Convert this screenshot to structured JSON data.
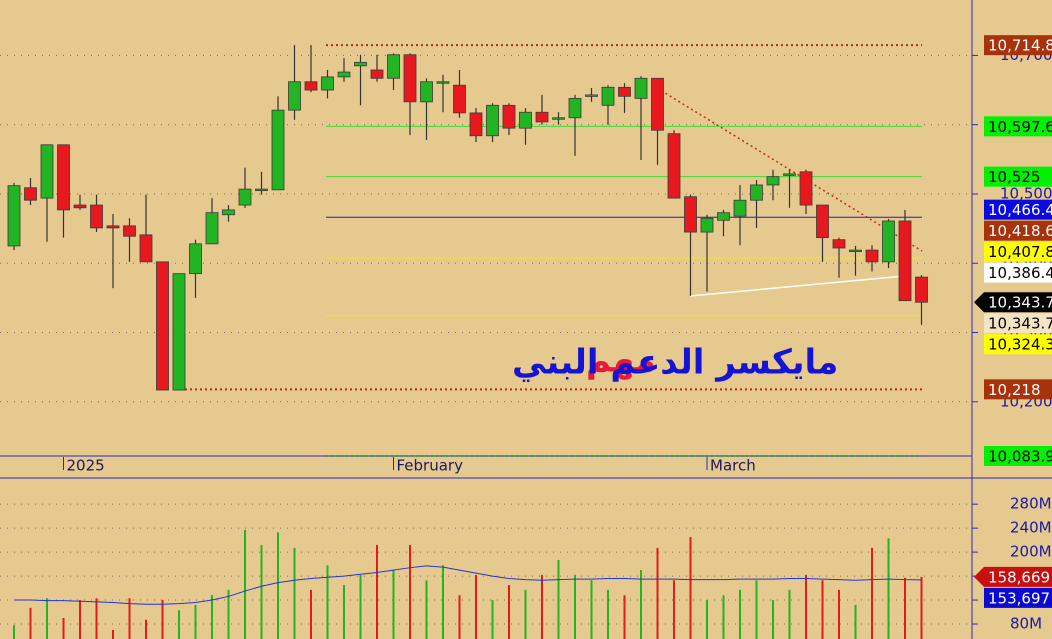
{
  "chart_data": [
    {
      "type": "candlestick",
      "categories": [
        null,
        null,
        null,
        "2025",
        null,
        null,
        null,
        null,
        null,
        null,
        null,
        null,
        null,
        null,
        null,
        null,
        null,
        null,
        null,
        null,
        null,
        null,
        null,
        "February",
        null,
        null,
        null,
        null,
        null,
        null,
        null,
        null,
        null,
        null,
        null,
        null,
        null,
        null,
        null,
        null,
        null,
        null,
        "March",
        null,
        null,
        null,
        null,
        null,
        null,
        null,
        null,
        null,
        null,
        null,
        null,
        null
      ],
      "open": [
        10425,
        10509,
        10494,
        10571,
        10484,
        10484,
        10454,
        10454,
        10441,
        10402,
        10217,
        10385,
        10428,
        10470,
        10484,
        10507,
        10506,
        10621,
        10662,
        10650,
        10669,
        10685,
        10679,
        10667,
        10701,
        10633,
        10662,
        10657,
        10617,
        10584,
        10628,
        10595,
        10618,
        10610,
        10610,
        10643,
        10628,
        10654,
        10638,
        10667,
        10587,
        10496,
        10445,
        10462,
        10468,
        10491,
        10513,
        10529,
        10532,
        10484,
        10434,
        10419,
        10419,
        10402,
        10461,
        10380
      ],
      "high": [
        10516,
        10523,
        10571,
        10571,
        10499,
        10499,
        10471,
        10465,
        10499,
        10402,
        10385,
        10434,
        10494,
        10484,
        10538,
        10532,
        10641,
        10715,
        10715,
        10679,
        10696,
        10701,
        10701,
        10703,
        10703,
        10667,
        10672,
        10679,
        10624,
        10631,
        10631,
        10624,
        10643,
        10618,
        10643,
        10653,
        10657,
        10660,
        10670,
        10667,
        10592,
        10499,
        10470,
        10477,
        10513,
        10520,
        10535,
        10535,
        10535,
        10484,
        10437,
        10425,
        10426,
        10464,
        10477,
        10383
      ],
      "low": [
        10419,
        10484,
        10431,
        10437,
        10477,
        10445,
        10364,
        10402,
        10402,
        10217,
        10217,
        10350,
        10428,
        10460,
        10480,
        10499,
        10506,
        10607,
        10647,
        10638,
        10662,
        10628,
        10662,
        10650,
        10585,
        10578,
        10618,
        10610,
        10575,
        10575,
        10585,
        10571,
        10600,
        10600,
        10555,
        10633,
        10600,
        10617,
        10549,
        10542,
        10494,
        10353,
        10359,
        10439,
        10426,
        10451,
        10491,
        10480,
        10471,
        10402,
        10379,
        10382,
        10388,
        10393,
        10346,
        10311
      ],
      "close": [
        10512,
        10491,
        10571,
        10477,
        10480,
        10451,
        10451,
        10439,
        10402,
        10217,
        10385,
        10428,
        10473,
        10477,
        10507,
        10507,
        10621,
        10662,
        10650,
        10669,
        10676,
        10690,
        10667,
        10701,
        10633,
        10662,
        10662,
        10617,
        10584,
        10628,
        10595,
        10618,
        10604,
        10610,
        10638,
        10643,
        10654,
        10641,
        10667,
        10592,
        10494,
        10445,
        10465,
        10473,
        10491,
        10513,
        10525,
        10529,
        10484,
        10437,
        10422,
        10419,
        10402,
        10461,
        10346,
        10343.7
      ],
      "up_color": "#22b422",
      "down_color": "#e8191e",
      "ylim": [
        10090,
        10780
      ],
      "yticks": [
        {
          "value": 10200,
          "label": "10,200"
        },
        {
          "value": 10300,
          "label": "10,300"
        },
        {
          "value": 10400,
          "label": "10,400"
        },
        {
          "value": 10500,
          "label": "10,500"
        },
        {
          "value": 10600,
          "label": "10,600"
        },
        {
          "value": 10700,
          "label": "10,700"
        }
      ],
      "grid": true,
      "levels": [
        {
          "value": 10714.8,
          "label": "10,714.8",
          "color": "#a8320c",
          "text_color": "#ffffff",
          "line": "dotted",
          "line_color": "#b03010"
        },
        {
          "value": 10597.6,
          "label": "10,597.6",
          "color": "#00f000",
          "text_color": "#000000",
          "line": "solid",
          "line_color": "#3cdc3c"
        },
        {
          "value": 10525,
          "label": "10,525",
          "color": "#00f000",
          "text_color": "#000000",
          "line": "solid",
          "line_color": "#3cdc3c"
        },
        {
          "value": 10466.4,
          "label": "10,466.4",
          "color": "#0a0ae0",
          "text_color": "#ffffff",
          "line": "solid",
          "line_color": "#2020c0"
        },
        {
          "value": 10418.6,
          "label": "10,418.6",
          "color": "#a8320c",
          "text_color": "#ffffff"
        },
        {
          "value": 10407.8,
          "label": "10,407.8",
          "color": "#ffff00",
          "text_color": "#000000",
          "line": "solid",
          "line_color": "#f0f000"
        },
        {
          "value": 10386.4,
          "label": "10,386.4",
          "color": "#ffffff",
          "text_color": "#000000"
        },
        {
          "value": 10343.7,
          "label": "10,343.7",
          "color": "#000000",
          "text_color": "#ffffff",
          "current": true
        },
        {
          "value": 10343.7,
          "label": "10,343.7",
          "color": "#f4e4c6",
          "text_color": "#000000"
        },
        {
          "value": 10324.3,
          "label": "10,324.3",
          "color": "#ffff00",
          "text_color": "#000000",
          "line": "solid",
          "line_color": "#f0f000"
        },
        {
          "value": 10218,
          "label": "10,218",
          "color": "#a8320c",
          "text_color": "#ffffff",
          "line": "dotted",
          "line_color": "#b03010"
        },
        {
          "value": 10083.9,
          "label": "10,083.9",
          "color": "#00f000",
          "text_color": "#000000",
          "line": "dotted",
          "line_color": "#2cb02c"
        }
      ],
      "annotations": [
        {
          "text": "مهم",
          "color": "#e8193c"
        },
        {
          "text": "مايكسر الدعم البني",
          "color": "#1414d2"
        }
      ]
    },
    {
      "type": "volume",
      "values": [
        78,
        107,
        123,
        90,
        120,
        123,
        70,
        123,
        87,
        120,
        103,
        112,
        128,
        137,
        237,
        212,
        233,
        207,
        137,
        178,
        145,
        162,
        212,
        170,
        212,
        153,
        178,
        128,
        162,
        120,
        145,
        137,
        162,
        187,
        162,
        153,
        137,
        128,
        170,
        207,
        153,
        225,
        120,
        128,
        137,
        153,
        120,
        137,
        162,
        153,
        137,
        112,
        207,
        223,
        157,
        158.669
      ],
      "average": [
        120,
        120,
        119,
        119,
        118,
        117,
        116,
        114,
        113,
        113,
        114,
        116,
        120,
        126,
        135,
        143,
        149,
        153,
        156,
        158,
        160,
        163,
        166,
        170,
        174,
        177,
        175,
        170,
        165,
        160,
        156,
        154,
        153,
        154,
        155,
        155,
        156,
        156,
        155,
        155,
        155,
        154,
        154,
        154,
        155,
        155,
        155,
        156,
        156,
        155,
        154,
        153,
        154,
        155,
        154,
        153.697
      ],
      "average_color": "#2535d0",
      "ylim": [
        55,
        322
      ],
      "yticks": [
        {
          "value": 80,
          "label": "80M"
        },
        {
          "value": 120,
          "label": "120M"
        },
        {
          "value": 160,
          "label": "160M"
        },
        {
          "value": 200,
          "label": "200M"
        },
        {
          "value": 240,
          "label": "240M"
        },
        {
          "value": 280,
          "label": "280M"
        }
      ],
      "grid": true,
      "levels": [
        {
          "value": 158.669,
          "label": "158,669",
          "color": "#c81010",
          "text_color": "#ffffff",
          "current": true
        },
        {
          "value": 153.697,
          "label": "153,697",
          "color": "#0a0ad0",
          "text_color": "#ffffff"
        }
      ]
    }
  ]
}
